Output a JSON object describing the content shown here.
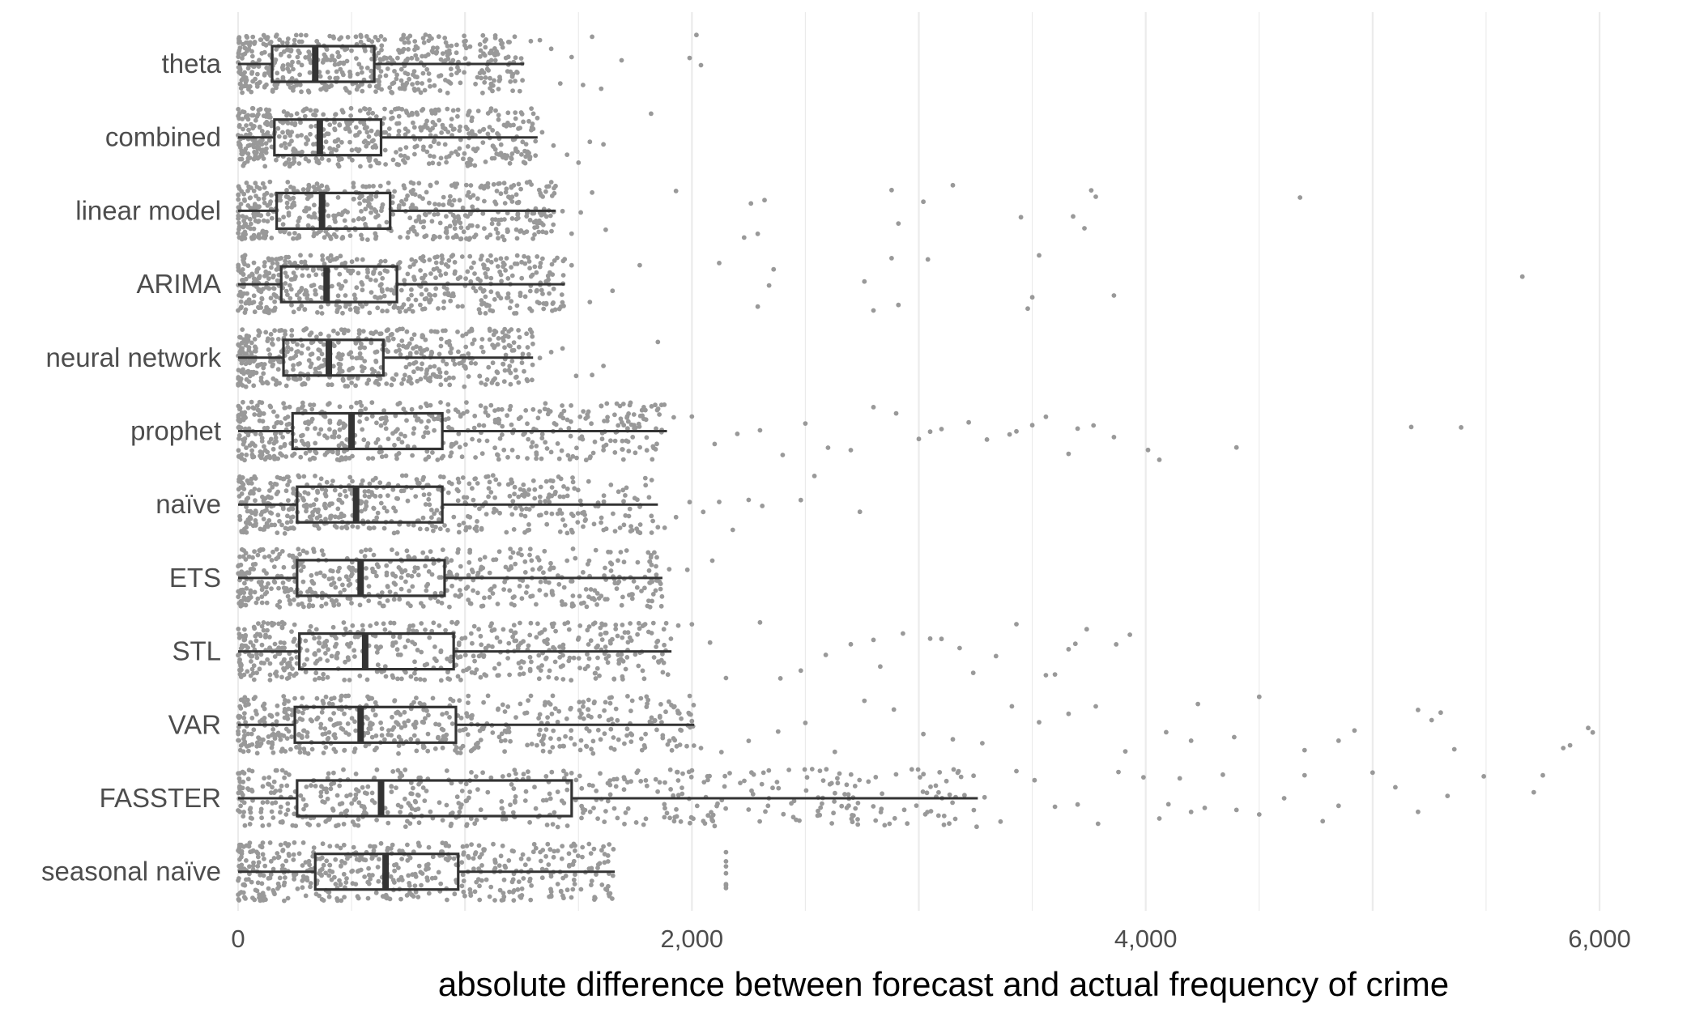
{
  "chart_data": {
    "type": "boxplot",
    "orientation": "horizontal",
    "title": "",
    "xlabel": "absolute difference between forecast and actual frequency of crime",
    "ylabel": "",
    "xlim": [
      0,
      6250
    ],
    "x_ticks": [
      0,
      2000,
      4000,
      6000
    ],
    "x_tick_labels": [
      "0",
      "2,000",
      "4,000",
      "6,000"
    ],
    "grid": "vertical major and minor",
    "legend": "none",
    "colors": {
      "box": "#333333",
      "points": "#999999",
      "grid": "#ebebeb"
    },
    "series": [
      {
        "name": "theta",
        "whisker_low": 0,
        "q1": 150,
        "median": 340,
        "q3": 600,
        "whisker_high": 1260,
        "outliers": [
          1290,
          1330,
          1380,
          1420,
          1470,
          1520,
          1560,
          1600,
          1690,
          1990,
          2020,
          2040
        ]
      },
      {
        "name": "combined",
        "whisker_low": 0,
        "q1": 160,
        "median": 360,
        "q3": 630,
        "whisker_high": 1320,
        "outliers": [
          1340,
          1390,
          1450,
          1500,
          1550,
          1610,
          1820
        ]
      },
      {
        "name": "linear model",
        "whisker_low": 0,
        "q1": 170,
        "median": 370,
        "q3": 670,
        "whisker_high": 1400,
        "outliers": [
          1430,
          1470,
          1510,
          1560,
          1620,
          1930,
          2230,
          2260,
          2290,
          2320,
          2880,
          2910,
          3020,
          3150,
          3450,
          3680,
          3730,
          3760,
          3780,
          4680
        ]
      },
      {
        "name": "ARIMA",
        "whisker_low": 0,
        "q1": 190,
        "median": 390,
        "q3": 700,
        "whisker_high": 1440,
        "outliers": [
          1470,
          1550,
          1650,
          1770,
          2120,
          2290,
          2340,
          2360,
          2760,
          2800,
          2880,
          2910,
          3040,
          3480,
          3500,
          3530,
          3860,
          5660
        ]
      },
      {
        "name": "neural network",
        "whisker_low": 0,
        "q1": 200,
        "median": 400,
        "q3": 640,
        "whisker_high": 1300,
        "outliers": [
          1330,
          1380,
          1430,
          1490,
          1560,
          1610,
          1850
        ]
      },
      {
        "name": "prophet",
        "whisker_low": 0,
        "q1": 240,
        "median": 500,
        "q3": 900,
        "whisker_high": 1890,
        "outliers": [
          1920,
          2000,
          2100,
          2200,
          2300,
          2400,
          2500,
          2600,
          2700,
          2800,
          2900,
          3000,
          3050,
          3100,
          3220,
          3300,
          3400,
          3430,
          3500,
          3560,
          3660,
          3700,
          3770,
          3860,
          4010,
          4060,
          4400,
          5170,
          5390
        ]
      },
      {
        "name": "naïve",
        "whisker_low": 0,
        "q1": 260,
        "median": 520,
        "q3": 900,
        "whisker_high": 1850,
        "outliers": [
          1880,
          1930,
          1990,
          2050,
          2120,
          2180,
          2250,
          2310,
          2480,
          2540,
          2740
        ]
      },
      {
        "name": "ETS",
        "whisker_low": 0,
        "q1": 260,
        "median": 540,
        "q3": 910,
        "whisker_high": 1870,
        "outliers": [
          1900,
          1980,
          2090
        ]
      },
      {
        "name": "STL",
        "whisker_low": 0,
        "q1": 270,
        "median": 560,
        "q3": 950,
        "whisker_high": 1910,
        "outliers": [
          1940,
          2000,
          2080,
          2150,
          2300,
          2390,
          2480,
          2590,
          2700,
          2800,
          2830,
          2930,
          3050,
          3100,
          3180,
          3240,
          3340,
          3430,
          3560,
          3600,
          3660,
          3690,
          3740,
          3870,
          3930
        ]
      },
      {
        "name": "VAR",
        "whisker_low": 0,
        "q1": 250,
        "median": 540,
        "q3": 960,
        "whisker_high": 2010,
        "outliers": [
          2040,
          2130,
          2250,
          2380,
          2500,
          2630,
          2760,
          2890,
          3020,
          3150,
          3280,
          3410,
          3530,
          3660,
          3780,
          3910,
          4090,
          4200,
          4230,
          4390,
          4500,
          4700,
          4850,
          4920,
          5200,
          5260,
          5300,
          5360,
          5840,
          5870,
          5950,
          5970
        ]
      },
      {
        "name": "FASSTER",
        "whisker_low": 0,
        "q1": 260,
        "median": 630,
        "q3": 1470,
        "whisker_high": 3260,
        "outliers": [
          3290,
          3360,
          3430,
          3510,
          3600,
          3700,
          3790,
          3880,
          3990,
          4060,
          4100,
          4150,
          4200,
          4260,
          4340,
          4400,
          4500,
          4610,
          4700,
          4780,
          4850,
          5000,
          5100,
          5200,
          5330,
          5490,
          5710,
          5750
        ]
      },
      {
        "name": "seasonal naïve",
        "whisker_low": 0,
        "q1": 340,
        "median": 650,
        "q3": 970,
        "whisker_high": 1660,
        "outliers": [
          2150,
          2150,
          2150,
          2150,
          2150,
          2150,
          2150
        ]
      }
    ]
  }
}
